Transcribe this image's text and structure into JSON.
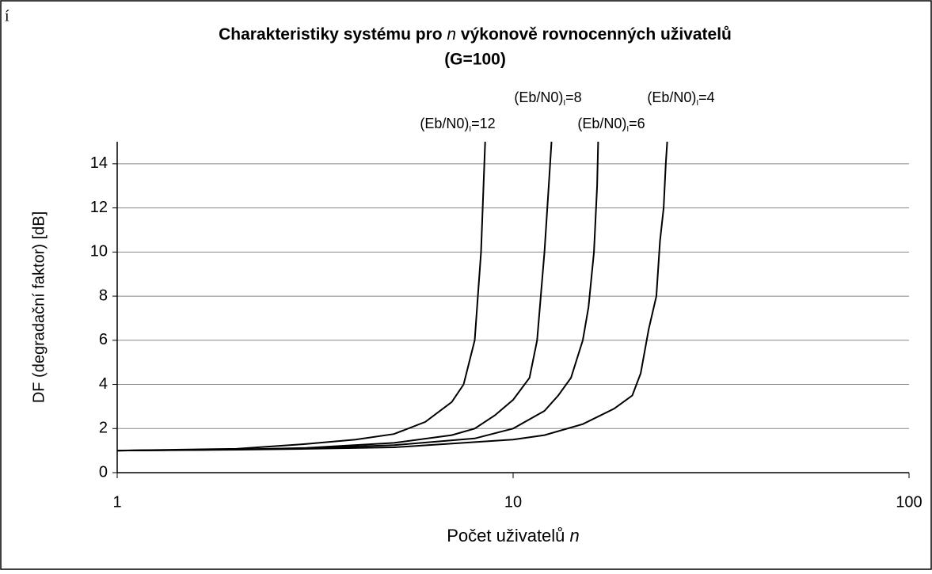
{
  "chart_data": {
    "type": "line",
    "corner_mark": "í",
    "title": [
      "Charakteristiky systému pro ",
      "n",
      " výkonově rovnocenných uživatelů"
    ],
    "subtitle": "(G=100)",
    "xlabel": [
      "Počet uživatelů ",
      "n"
    ],
    "ylabel": "DF (degradační faktor) [dB]",
    "xscale": "log",
    "xlim": [
      1,
      100
    ],
    "xticks": [
      1,
      10,
      100
    ],
    "ylim": [
      0,
      15
    ],
    "yticks": [
      0,
      2,
      4,
      6,
      8,
      10,
      12,
      14
    ],
    "grid": true,
    "series": [
      {
        "label": [
          "(Eb/N0)",
          "I",
          "=12"
        ],
        "color": "#000000",
        "x": [
          1,
          2,
          3,
          4,
          5,
          6,
          7,
          7.5,
          8,
          8.3,
          8.5
        ],
        "values": [
          1,
          1.08,
          1.3,
          1.5,
          1.75,
          2.3,
          3.2,
          4,
          6,
          10,
          15
        ]
      },
      {
        "label": [
          "(Eb/N0)",
          "I",
          "=8"
        ],
        "color": "#000000",
        "x": [
          1,
          2,
          3,
          5,
          7,
          8,
          9,
          10,
          11,
          11.5,
          12,
          12.3,
          12.5
        ],
        "values": [
          1,
          1.05,
          1.12,
          1.35,
          1.7,
          2.0,
          2.6,
          3.3,
          4.3,
          6,
          10,
          13,
          15
        ]
      },
      {
        "label": [
          "(Eb/N0)",
          "I",
          "=6"
        ],
        "color": "#000000",
        "x": [
          1,
          2,
          3,
          5,
          8,
          10,
          12,
          13,
          14,
          15,
          15.5,
          16,
          16.3,
          16.4
        ],
        "values": [
          1,
          1.05,
          1.1,
          1.25,
          1.55,
          2.0,
          2.8,
          3.5,
          4.3,
          6,
          7.5,
          10,
          13,
          15
        ]
      },
      {
        "label": [
          "(Eb/N0)",
          "I",
          "=4"
        ],
        "color": "#000000",
        "x": [
          1,
          2,
          3,
          5,
          10,
          12,
          15,
          18,
          20,
          21,
          22,
          23,
          23.5,
          24,
          24.3,
          24.5
        ],
        "values": [
          1,
          1.04,
          1.08,
          1.15,
          1.5,
          1.7,
          2.2,
          2.9,
          3.5,
          4.5,
          6.5,
          8,
          10.5,
          12,
          14,
          15
        ]
      }
    ]
  }
}
